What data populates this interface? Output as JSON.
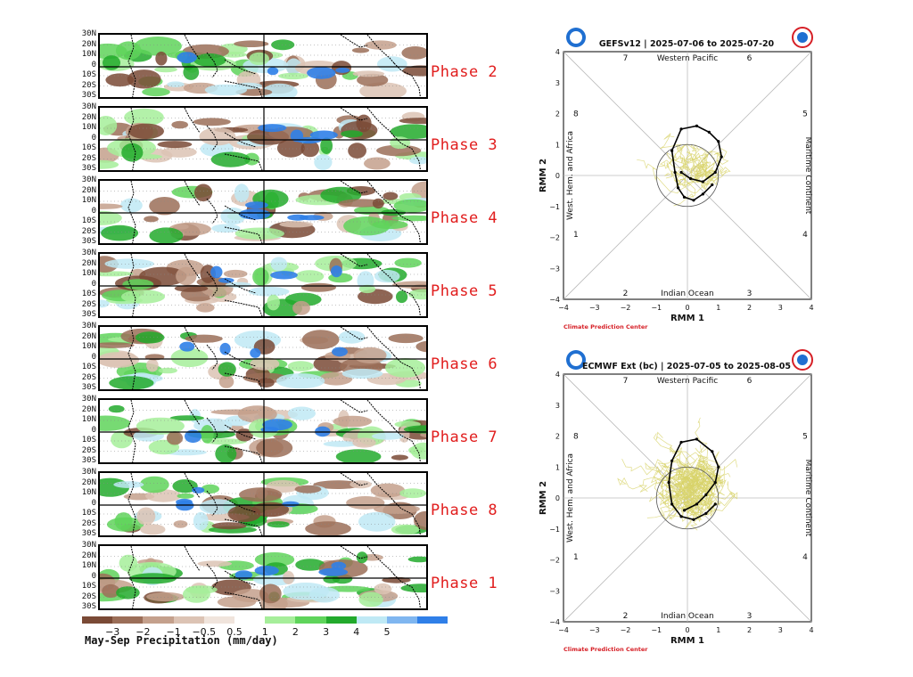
{
  "composite": {
    "lat_labels": [
      "30N",
      "20N",
      "10N",
      "0",
      "10S",
      "20S",
      "30S"
    ],
    "phases": [
      "Phase 2",
      "Phase 3",
      "Phase 4",
      "Phase 5",
      "Phase 6",
      "Phase 7",
      "Phase 8",
      "Phase 1"
    ],
    "colorbar": {
      "ticks": [
        "−3",
        "−2",
        "−1",
        "−0.5",
        "0.5",
        "1",
        "2",
        "3",
        "4",
        "5"
      ],
      "title": "May-Sep Precipitation (mm/day)",
      "dry_colors": [
        "#7a4a36",
        "#9b6e58",
        "#c4a08c",
        "#dcc3b4",
        "#f0e4dc"
      ],
      "wet_colors": [
        "#a6ee9a",
        "#5fd45b",
        "#22aa2c",
        "#bfe9f5",
        "#7fb6f0",
        "#2f7fe8"
      ]
    }
  },
  "gefs": {
    "title": "GEFSv12 | 2025-07-06 to 2025-07-20",
    "xlabel": "RMM 1",
    "ylabel": "RMM 2",
    "top_label": "Western Pacific",
    "bottom_label": "Indian Ocean",
    "left_label": "West. Hem. and Africa",
    "right_label": "Maritime Continent",
    "phase_numbers": [
      "1",
      "2",
      "3",
      "4",
      "5",
      "6",
      "7",
      "8"
    ],
    "credit": "Climate Prediction Center",
    "ticks": [
      "−4",
      "−3",
      "−2",
      "−1",
      "0",
      "1",
      "2",
      "3",
      "4"
    ]
  },
  "ecmwf": {
    "title": "ECMWF Ext (bc) | 2025-07-05 to 2025-08-05",
    "xlabel": "RMM 1",
    "ylabel": "RMM 2",
    "top_label": "Western Pacific",
    "bottom_label": "Indian Ocean",
    "left_label": "West. Hem. and Africa",
    "right_label": "Maritime Continent",
    "phase_numbers": [
      "1",
      "2",
      "3",
      "4",
      "5",
      "6",
      "7",
      "8"
    ],
    "credit": "Climate Prediction Center",
    "ticks": [
      "−4",
      "−3",
      "−2",
      "−1",
      "0",
      "1",
      "2",
      "3",
      "4"
    ]
  },
  "chart_data": [
    {
      "type": "line",
      "title": "GEFSv12 | 2025-07-06 to 2025-07-20",
      "xlabel": "RMM 1",
      "ylabel": "RMM 2",
      "xlim": [
        -4,
        4
      ],
      "ylim": [
        -4,
        4
      ],
      "series": [
        {
          "x": [
            0.8,
            0.5,
            0.2,
            -0.1,
            -0.3,
            -0.4,
            -0.5,
            -0.2,
            0.3,
            0.7,
            1.0,
            1.1,
            0.9,
            0.5,
            0.1,
            -0.2
          ],
          "y": [
            -0.3,
            -0.6,
            -0.8,
            -0.7,
            -0.4,
            0.1,
            0.8,
            1.5,
            1.6,
            1.4,
            1.1,
            0.6,
            0.1,
            -0.2,
            -0.1,
            0.1
          ]
        }
      ]
    },
    {
      "type": "line",
      "title": "ECMWF Ext (bc) | 2025-07-05 to 2025-08-05",
      "xlabel": "RMM 1",
      "ylabel": "RMM 2",
      "xlim": [
        -4,
        4
      ],
      "ylim": [
        -4,
        4
      ],
      "series": [
        {
          "x": [
            0.9,
            0.6,
            0.2,
            -0.2,
            -0.5,
            -0.6,
            -0.5,
            -0.2,
            0.3,
            0.8,
            1.0,
            0.9,
            0.6,
            0.3,
            -0.1
          ],
          "y": [
            -0.2,
            -0.5,
            -0.7,
            -0.6,
            -0.2,
            0.5,
            1.2,
            1.8,
            1.9,
            1.5,
            1.0,
            0.5,
            0.1,
            -0.2,
            -0.4
          ]
        }
      ]
    }
  ]
}
